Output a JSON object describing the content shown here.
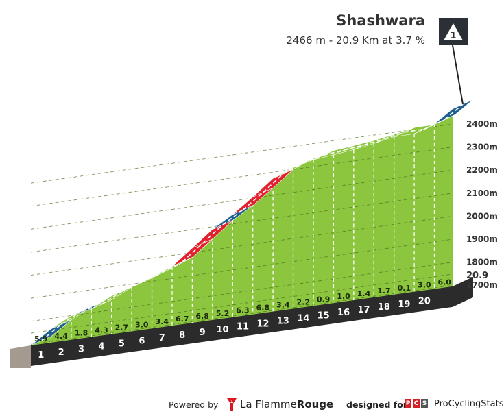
{
  "header": {
    "title": "Shashwara",
    "subtitle": "2466 m - 20.9 Km at 3.7 %",
    "category_badge": "1"
  },
  "footer": {
    "powered_by": "Powered by",
    "brand_name": "La Flamme",
    "brand_name_bold": "Rouge",
    "designed_for": "designed for",
    "pcs_letters": [
      "P",
      "C",
      "S"
    ],
    "pcs_name": "ProCyclingStats"
  },
  "colors": {
    "green": "#8cc63f",
    "red": "#e2202e",
    "blue": "#1f5f8f",
    "base_dark": "#2b2b2b",
    "side_gray": "#a59a8f",
    "pcs_red": "#d71f26",
    "pcs_dark": "#555555",
    "flamme_red": "#d7191f"
  },
  "chart_data": {
    "type": "area",
    "title": "Shashwara",
    "subtitle": "2466 m - 20.9 Km at 3.7 %",
    "x_unit": "km",
    "y_unit": "m",
    "total_distance": 20.9,
    "total_distance_label": "20.9",
    "km_markers": [
      "1",
      "2",
      "3",
      "4",
      "5",
      "6",
      "7",
      "8",
      "9",
      "10",
      "11",
      "12",
      "13",
      "14",
      "15",
      "16",
      "17",
      "18",
      "19",
      "20"
    ],
    "gradients": [
      5.9,
      4.4,
      1.8,
      4.3,
      2.7,
      3.0,
      3.4,
      6.7,
      6.8,
      5.2,
      6.3,
      6.8,
      3.4,
      2.2,
      0.9,
      1.0,
      1.4,
      1.7,
      0.1,
      3.0,
      6.0
    ],
    "gradient_labels": [
      "5.9",
      "4.4",
      "1.8",
      "4.3",
      "2.7",
      "3.0",
      "3.4",
      "6.7",
      "6.8",
      "5.2",
      "6.3",
      "6.8",
      "3.4",
      "2.2",
      "0.9",
      "1.0",
      "1.4",
      "1.7",
      "0.1",
      "3.0",
      "6.0"
    ],
    "segment_lengths": [
      1,
      1,
      1,
      1,
      1,
      1,
      1,
      1,
      1,
      1,
      1,
      1,
      1,
      1,
      1,
      1,
      1,
      1,
      1,
      1,
      0.9
    ],
    "segment_colors": [
      "blue",
      "green",
      "blue",
      "green",
      "green",
      "green",
      "green",
      "red",
      "red",
      "blue",
      "red",
      "red",
      "green",
      "green",
      "green",
      "green",
      "green",
      "green",
      "green",
      "green",
      "blue"
    ],
    "y_ticks": [
      1700,
      1800,
      1900,
      2000,
      2100,
      2200,
      2300,
      2400
    ],
    "y_tick_labels": [
      "1700m",
      "1800m",
      "1900m",
      "2000m",
      "2100m",
      "2200m",
      "2300m",
      "2400m"
    ],
    "elevation_start": 1695,
    "elevation_end": 2466,
    "grid": true,
    "legend": "none"
  }
}
